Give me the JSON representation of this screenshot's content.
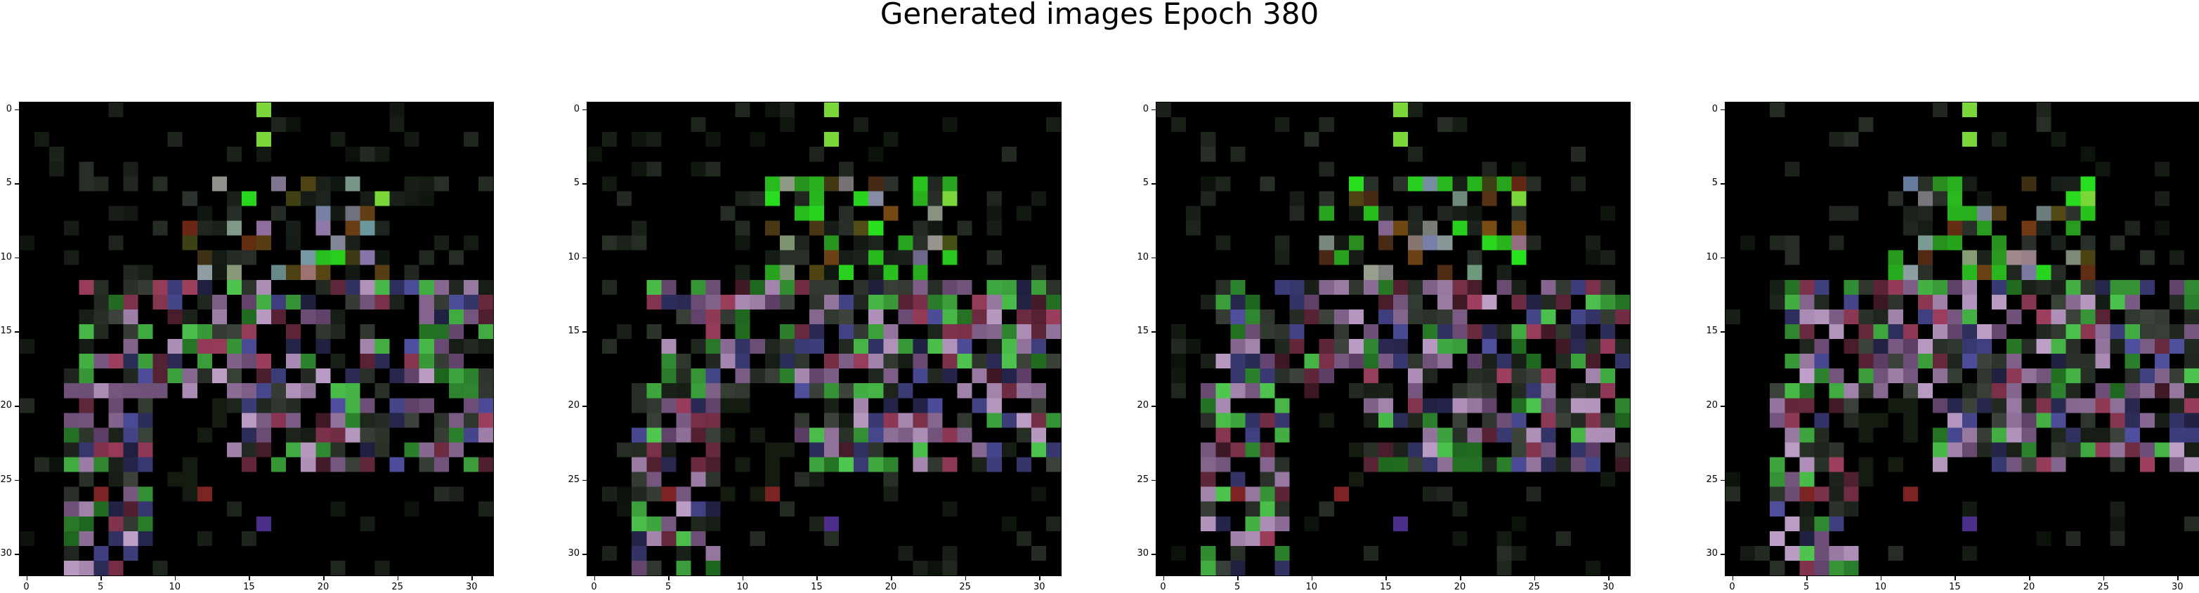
{
  "figure": {
    "title": "Generated images Epoch 380"
  },
  "axes": {
    "ticks": [
      "0",
      "5",
      "10",
      "15",
      "20",
      "25",
      "30"
    ],
    "extent": [
      0,
      32
    ]
  },
  "panels": [
    {
      "label": "generated-image-1"
    },
    {
      "label": "generated-image-2"
    },
    {
      "label": "generated-image-3"
    },
    {
      "label": "generated-image-4"
    }
  ],
  "palette": {
    "background": "#000000",
    "green": "#7bd63a",
    "lavender": "#a38fb0",
    "purple": "#4b2d8a"
  }
}
